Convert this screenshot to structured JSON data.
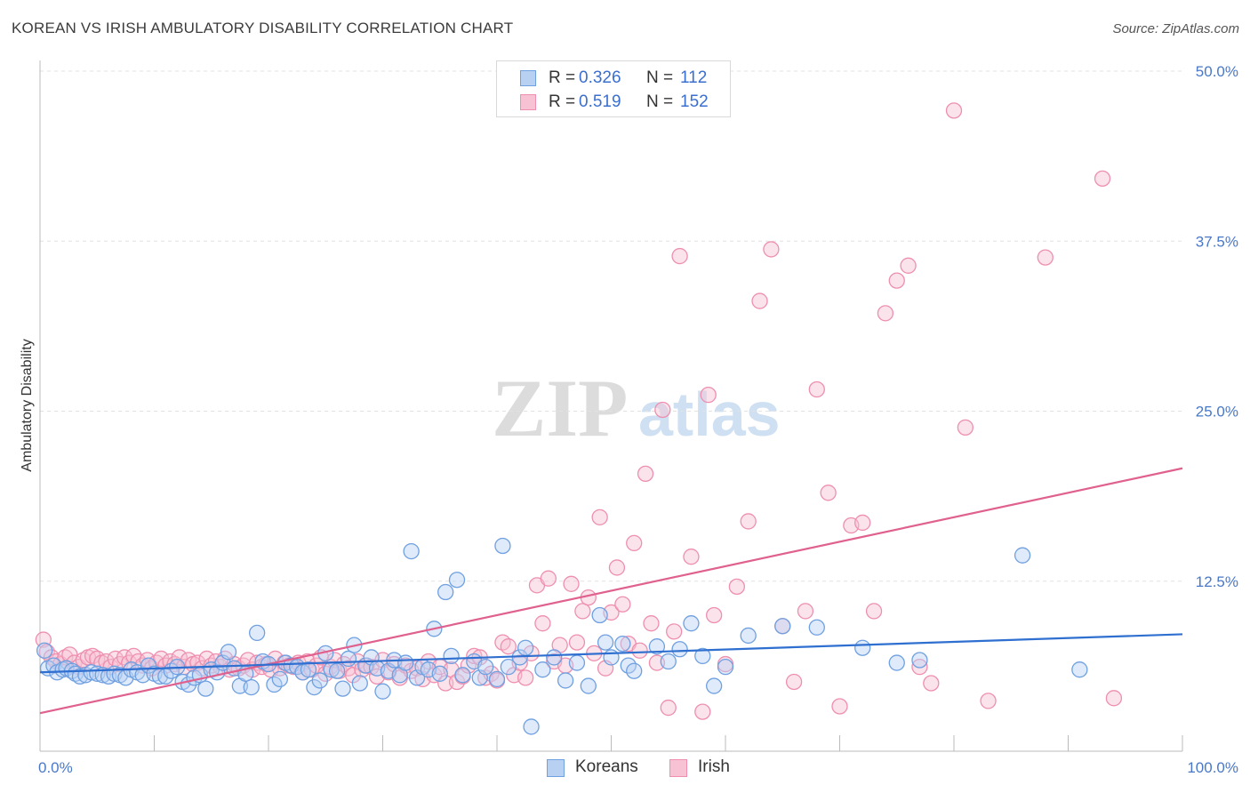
{
  "title": "KOREAN VS IRISH AMBULATORY DISABILITY CORRELATION CHART",
  "source": "Source: ZipAtlas.com",
  "colors": {
    "koreans_fill": "#b8d1f3",
    "koreans_stroke": "#6fa0e0",
    "koreans_line": "#2e6fd0",
    "irish_fill": "#f7c2d3",
    "irish_stroke": "#ee8fb0",
    "irish_line": "#e0608e",
    "tick_text": "#4a78c8"
  },
  "legend_top": [
    {
      "r_label": "R =",
      "r_value": "0.326",
      "n_label": "N =",
      "n_value": "112"
    },
    {
      "r_label": "R =",
      "r_value": "0.519",
      "n_label": "N =",
      "n_value": "152"
    }
  ],
  "watermark": {
    "zip": "ZIP",
    "atlas": "atlas"
  },
  "chart_data": {
    "type": "scatter",
    "title": "KOREAN VS IRISH AMBULATORY DISABILITY CORRELATION CHART",
    "xlabel": "",
    "ylabel": "Ambulatory Disability",
    "xlim": [
      0,
      100
    ],
    "ylim": [
      0,
      50
    ],
    "x_tick_labels": [
      "0.0%",
      "100.0%"
    ],
    "y_ticks": [
      12.5,
      25.0,
      37.5,
      50.0
    ],
    "y_tick_labels": [
      "12.5%",
      "25.0%",
      "37.5%",
      "50.0%"
    ],
    "grid": true,
    "legend_position": "top-center and bottom",
    "series": [
      {
        "name": "Koreans",
        "r": 0.326,
        "n": 112,
        "trend": [
          [
            0,
            5.8
          ],
          [
            100,
            8.6
          ]
        ],
        "points": [
          [
            0.4,
            7.4
          ],
          [
            0.7,
            6.1
          ],
          [
            1.2,
            6.3
          ],
          [
            1.5,
            5.8
          ],
          [
            2.0,
            6.0
          ],
          [
            2.3,
            6.1
          ],
          [
            2.8,
            5.9
          ],
          [
            3.1,
            5.7
          ],
          [
            3.5,
            5.5
          ],
          [
            4.0,
            5.6
          ],
          [
            4.5,
            5.8
          ],
          [
            5.0,
            5.7
          ],
          [
            5.5,
            5.6
          ],
          [
            6.0,
            5.5
          ],
          [
            6.5,
            5.7
          ],
          [
            7.0,
            5.6
          ],
          [
            7.5,
            5.4
          ],
          [
            8.0,
            6.0
          ],
          [
            8.5,
            5.8
          ],
          [
            9.0,
            5.6
          ],
          [
            9.5,
            6.3
          ],
          [
            10.0,
            5.7
          ],
          [
            10.5,
            5.5
          ],
          [
            11.0,
            5.5
          ],
          [
            11.5,
            5.9
          ],
          [
            12.0,
            6.2
          ],
          [
            12.5,
            5.1
          ],
          [
            13.0,
            4.9
          ],
          [
            13.5,
            5.4
          ],
          [
            14.0,
            5.6
          ],
          [
            14.5,
            4.6
          ],
          [
            15.0,
            6.0
          ],
          [
            15.5,
            5.8
          ],
          [
            16.0,
            6.5
          ],
          [
            16.5,
            7.3
          ],
          [
            17.0,
            6.1
          ],
          [
            17.5,
            4.8
          ],
          [
            18.0,
            5.7
          ],
          [
            18.5,
            4.7
          ],
          [
            19.0,
            8.7
          ],
          [
            19.5,
            6.6
          ],
          [
            20.0,
            6.4
          ],
          [
            20.5,
            4.9
          ],
          [
            21.0,
            5.3
          ],
          [
            21.5,
            6.5
          ],
          [
            22.0,
            6.3
          ],
          [
            22.5,
            6.2
          ],
          [
            23.0,
            5.8
          ],
          [
            23.5,
            6.0
          ],
          [
            24.0,
            4.7
          ],
          [
            24.5,
            5.2
          ],
          [
            25.0,
            7.2
          ],
          [
            25.5,
            6.0
          ],
          [
            26.0,
            5.9
          ],
          [
            26.5,
            4.6
          ],
          [
            27.0,
            6.8
          ],
          [
            27.5,
            7.8
          ],
          [
            28.0,
            5.0
          ],
          [
            28.5,
            6.3
          ],
          [
            29.0,
            6.9
          ],
          [
            29.5,
            6.1
          ],
          [
            30.0,
            4.4
          ],
          [
            30.5,
            5.9
          ],
          [
            31.0,
            6.7
          ],
          [
            31.5,
            5.6
          ],
          [
            32.0,
            6.5
          ],
          [
            32.5,
            14.7
          ],
          [
            33.0,
            5.4
          ],
          [
            33.5,
            6.2
          ],
          [
            34.0,
            6.0
          ],
          [
            34.5,
            9.0
          ],
          [
            35.0,
            5.7
          ],
          [
            35.5,
            11.7
          ],
          [
            36.0,
            7.0
          ],
          [
            36.5,
            12.6
          ],
          [
            37.0,
            5.6
          ],
          [
            38.0,
            6.6
          ],
          [
            38.5,
            5.4
          ],
          [
            39.0,
            6.2
          ],
          [
            40.0,
            5.3
          ],
          [
            40.5,
            15.1
          ],
          [
            41.0,
            6.2
          ],
          [
            42.0,
            6.9
          ],
          [
            42.5,
            7.6
          ],
          [
            43.0,
            1.8
          ],
          [
            44.0,
            6.0
          ],
          [
            45.0,
            6.9
          ],
          [
            46.0,
            5.2
          ],
          [
            47.0,
            6.5
          ],
          [
            48.0,
            4.8
          ],
          [
            49.0,
            10.0
          ],
          [
            49.5,
            8.0
          ],
          [
            50.0,
            6.9
          ],
          [
            51.0,
            7.9
          ],
          [
            51.5,
            6.3
          ],
          [
            52.0,
            5.9
          ],
          [
            54.0,
            7.7
          ],
          [
            55.0,
            6.6
          ],
          [
            56.0,
            7.5
          ],
          [
            57.0,
            9.4
          ],
          [
            58.0,
            7.0
          ],
          [
            59.0,
            4.8
          ],
          [
            60.0,
            6.2
          ],
          [
            62.0,
            8.5
          ],
          [
            65.0,
            9.2
          ],
          [
            68.0,
            9.1
          ],
          [
            72.0,
            7.6
          ],
          [
            75.0,
            6.5
          ],
          [
            77.0,
            6.7
          ],
          [
            86.0,
            14.4
          ],
          [
            91.0,
            6.0
          ]
        ]
      },
      {
        "name": "Irish",
        "r": 0.519,
        "n": 152,
        "trend": [
          [
            0,
            2.8
          ],
          [
            100,
            20.8
          ]
        ],
        "points": [
          [
            0.3,
            8.2
          ],
          [
            0.6,
            7.3
          ],
          [
            1.0,
            6.9
          ],
          [
            1.4,
            6.6
          ],
          [
            1.8,
            6.4
          ],
          [
            2.2,
            6.9
          ],
          [
            2.6,
            7.1
          ],
          [
            3.0,
            6.5
          ],
          [
            3.4,
            6.2
          ],
          [
            3.8,
            6.7
          ],
          [
            4.2,
            6.9
          ],
          [
            4.6,
            7.0
          ],
          [
            5.0,
            6.8
          ],
          [
            5.4,
            6.5
          ],
          [
            5.8,
            6.6
          ],
          [
            6.2,
            6.2
          ],
          [
            6.6,
            6.8
          ],
          [
            7.0,
            6.4
          ],
          [
            7.4,
            6.9
          ],
          [
            7.8,
            6.5
          ],
          [
            8.2,
            7.0
          ],
          [
            8.6,
            6.6
          ],
          [
            9.0,
            6.3
          ],
          [
            9.4,
            6.7
          ],
          [
            9.8,
            6.1
          ],
          [
            10.2,
            6.5
          ],
          [
            10.6,
            6.8
          ],
          [
            11.0,
            6.3
          ],
          [
            11.4,
            6.6
          ],
          [
            11.8,
            6.4
          ],
          [
            12.2,
            6.9
          ],
          [
            12.6,
            6.2
          ],
          [
            13.0,
            6.7
          ],
          [
            13.4,
            6.4
          ],
          [
            13.8,
            6.5
          ],
          [
            14.2,
            6.1
          ],
          [
            14.6,
            6.8
          ],
          [
            15.0,
            6.3
          ],
          [
            15.4,
            6.6
          ],
          [
            15.8,
            6.2
          ],
          [
            16.2,
            6.8
          ],
          [
            16.6,
            6.0
          ],
          [
            17.0,
            6.4
          ],
          [
            17.4,
            6.1
          ],
          [
            17.8,
            6.3
          ],
          [
            18.2,
            6.7
          ],
          [
            18.6,
            6.0
          ],
          [
            19.0,
            6.5
          ],
          [
            19.4,
            6.2
          ],
          [
            19.8,
            6.4
          ],
          [
            20.2,
            6.0
          ],
          [
            20.6,
            6.8
          ],
          [
            21.0,
            6.1
          ],
          [
            21.4,
            6.5
          ],
          [
            21.8,
            6.3
          ],
          [
            22.2,
            6.2
          ],
          [
            22.6,
            6.5
          ],
          [
            23.0,
            5.8
          ],
          [
            23.4,
            6.6
          ],
          [
            23.8,
            6.0
          ],
          [
            24.2,
            6.3
          ],
          [
            24.6,
            6.9
          ],
          [
            25.0,
            5.7
          ],
          [
            25.4,
            6.2
          ],
          [
            25.8,
            6.7
          ],
          [
            26.2,
            5.9
          ],
          [
            26.6,
            6.4
          ],
          [
            27.0,
            6.1
          ],
          [
            27.4,
            5.6
          ],
          [
            27.8,
            6.6
          ],
          [
            28.2,
            6.0
          ],
          [
            28.6,
            6.3
          ],
          [
            29.0,
            6.2
          ],
          [
            29.5,
            5.5
          ],
          [
            30.0,
            6.7
          ],
          [
            30.5,
            5.8
          ],
          [
            31.0,
            6.4
          ],
          [
            31.5,
            5.4
          ],
          [
            32.0,
            6.3
          ],
          [
            32.5,
            5.9
          ],
          [
            33.0,
            6.1
          ],
          [
            33.5,
            5.3
          ],
          [
            34.0,
            6.6
          ],
          [
            34.5,
            5.6
          ],
          [
            35.0,
            6.2
          ],
          [
            35.5,
            5.0
          ],
          [
            36.0,
            6.0
          ],
          [
            36.5,
            5.1
          ],
          [
            37.0,
            5.5
          ],
          [
            37.5,
            6.3
          ],
          [
            38.0,
            7.0
          ],
          [
            38.5,
            6.9
          ],
          [
            39.0,
            5.4
          ],
          [
            39.5,
            5.7
          ],
          [
            40.0,
            5.2
          ],
          [
            40.5,
            8.0
          ],
          [
            41.0,
            7.7
          ],
          [
            41.5,
            5.6
          ],
          [
            42.0,
            6.5
          ],
          [
            42.5,
            5.4
          ],
          [
            43.0,
            7.2
          ],
          [
            43.5,
            12.2
          ],
          [
            44.0,
            9.4
          ],
          [
            44.5,
            12.7
          ],
          [
            45.0,
            6.6
          ],
          [
            45.5,
            7.8
          ],
          [
            46.0,
            6.3
          ],
          [
            46.5,
            12.3
          ],
          [
            47.0,
            8.0
          ],
          [
            47.5,
            10.3
          ],
          [
            48.0,
            11.3
          ],
          [
            48.5,
            7.2
          ],
          [
            49.0,
            17.2
          ],
          [
            49.5,
            6.1
          ],
          [
            50.0,
            10.2
          ],
          [
            50.5,
            13.5
          ],
          [
            51.0,
            10.8
          ],
          [
            51.5,
            7.9
          ],
          [
            52.0,
            15.3
          ],
          [
            52.5,
            7.4
          ],
          [
            53.0,
            20.4
          ],
          [
            53.5,
            9.4
          ],
          [
            54.0,
            6.5
          ],
          [
            54.5,
            25.1
          ],
          [
            55.0,
            3.2
          ],
          [
            55.5,
            8.8
          ],
          [
            56.0,
            36.4
          ],
          [
            57.0,
            14.3
          ],
          [
            58.0,
            2.9
          ],
          [
            58.5,
            26.2
          ],
          [
            59.0,
            10.0
          ],
          [
            60.0,
            6.4
          ],
          [
            61.0,
            12.1
          ],
          [
            62.0,
            16.9
          ],
          [
            63.0,
            33.1
          ],
          [
            64.0,
            36.9
          ],
          [
            65.0,
            9.2
          ],
          [
            66.0,
            5.1
          ],
          [
            67.0,
            10.3
          ],
          [
            68.0,
            26.6
          ],
          [
            69.0,
            19.0
          ],
          [
            70.0,
            3.3
          ],
          [
            71.0,
            16.6
          ],
          [
            72.0,
            16.8
          ],
          [
            73.0,
            10.3
          ],
          [
            74.0,
            32.2
          ],
          [
            75.0,
            34.6
          ],
          [
            76.0,
            35.7
          ],
          [
            77.0,
            6.2
          ],
          [
            78.0,
            5.0
          ],
          [
            80.0,
            47.1
          ],
          [
            81.0,
            23.8
          ],
          [
            83.0,
            3.7
          ],
          [
            88.0,
            36.3
          ],
          [
            93.0,
            42.1
          ],
          [
            94.0,
            3.9
          ]
        ]
      }
    ]
  },
  "legend_bottom": [
    {
      "label": "Koreans"
    },
    {
      "label": "Irish"
    }
  ]
}
